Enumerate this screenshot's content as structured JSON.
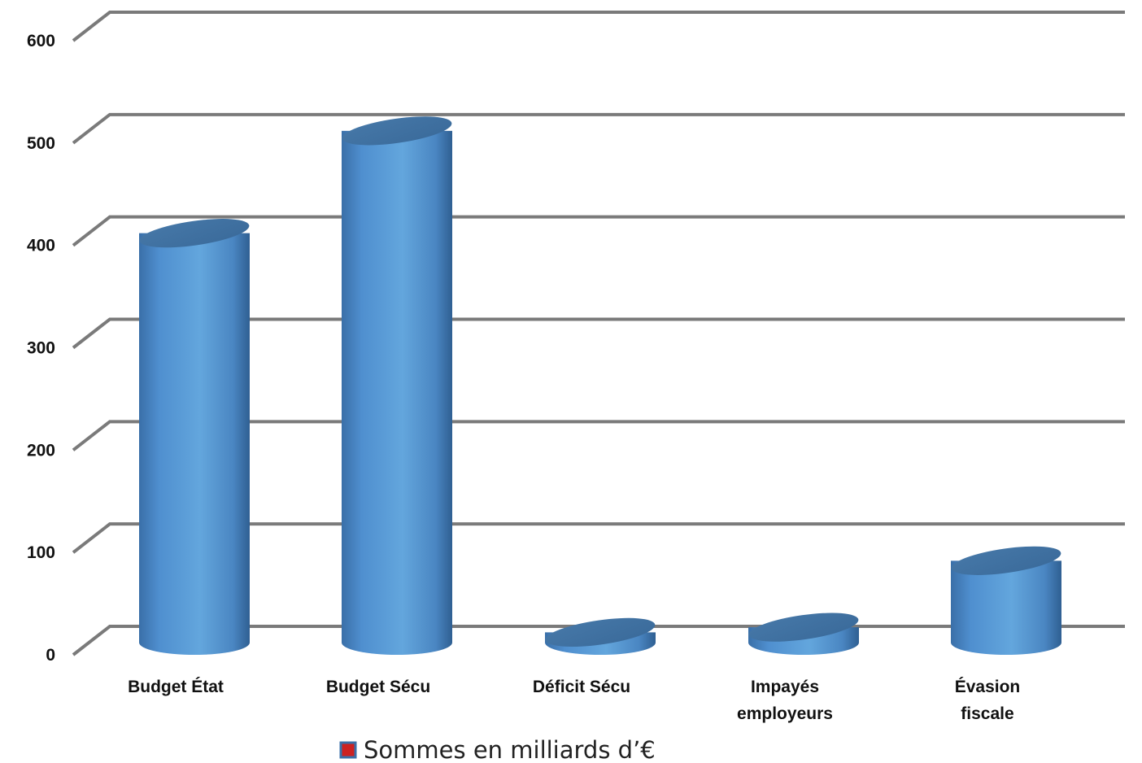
{
  "chart_data": {
    "type": "bar",
    "style": "3d-cylinder",
    "categories": [
      "Budget État",
      "Budget Sécu",
      "Déficit Sécu",
      "Impayés employeurs",
      "Évasion fiscale"
    ],
    "series": [
      {
        "name": "Sommes en milliards d’€",
        "values": [
          400,
          500,
          10,
          15,
          80
        ],
        "color": "#4f8fcf",
        "legend_swatch_color": "#cc2222"
      }
    ],
    "ylim": [
      0,
      600
    ],
    "yticks": [
      0,
      100,
      200,
      300,
      400,
      500,
      600
    ],
    "grid": true,
    "grid_color": "#7a7a7a",
    "legend_position": "bottom"
  }
}
